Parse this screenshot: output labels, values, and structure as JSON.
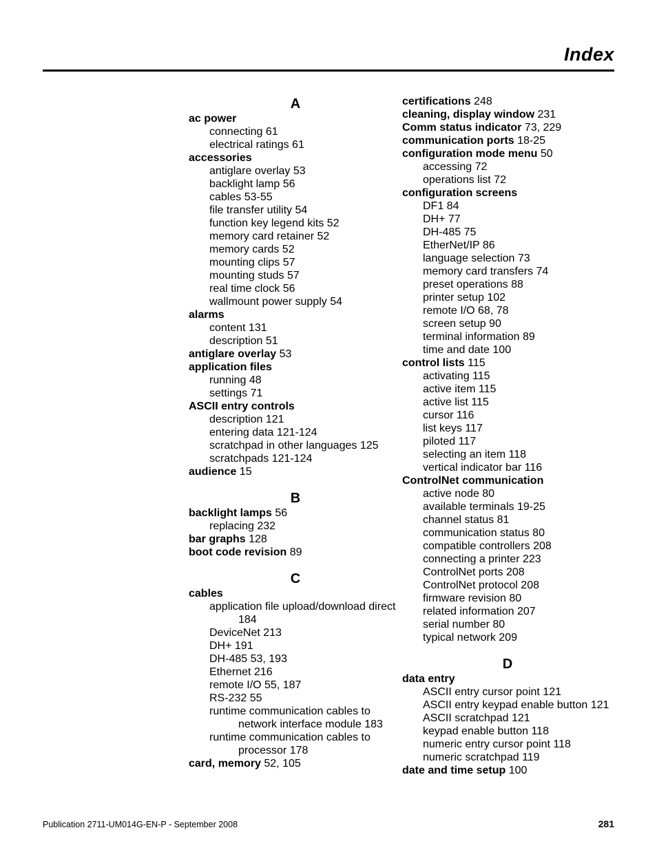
{
  "header": {
    "title": "Index"
  },
  "footer": {
    "pub": "Publication 2711-UM014G-EN-P - September 2008",
    "page": "281"
  },
  "col1": {
    "A": {
      "letter": "A",
      "ac_power": {
        "term": "ac power",
        "subs": [
          "connecting 61",
          "electrical ratings 61"
        ]
      },
      "accessories": {
        "term": "accessories",
        "subs": [
          "antiglare overlay 53",
          "backlight lamp 56",
          "cables 53-55",
          "file transfer utility 54",
          "function key legend kits 52",
          "memory card retainer 52",
          "memory cards 52",
          "mounting clips 57",
          "mounting studs 57",
          "real time clock 56",
          "wallmount power supply 54"
        ]
      },
      "alarms": {
        "term": "alarms",
        "subs": [
          "content 131",
          "description 51"
        ]
      },
      "antiglare_overlay": {
        "term": "antiglare overlay",
        "page": " 53"
      },
      "application_files": {
        "term": "application files",
        "subs": [
          "running 48",
          "settings 71"
        ]
      },
      "ascii_entry": {
        "term": "ASCII entry controls",
        "subs": [
          "description 121",
          "entering data 121-124",
          "scratchpad in other languages 125",
          "scratchpads 121-124"
        ]
      },
      "audience": {
        "term": "audience",
        "page": " 15"
      }
    },
    "B": {
      "letter": "B",
      "backlight_lamps": {
        "term": "backlight lamps",
        "page": " 56",
        "subs": [
          "replacing 232"
        ]
      },
      "bar_graphs": {
        "term": "bar graphs",
        "page": " 128"
      },
      "boot_code": {
        "term": "boot code revision",
        "page": " 89"
      }
    },
    "C": {
      "letter": "C",
      "cables": {
        "term": "cables",
        "subs": [
          {
            "text": "application file upload/download direct",
            "cont": "184"
          },
          {
            "text": "DeviceNet 213"
          },
          {
            "text": "DH+ 191"
          },
          {
            "text": "DH-485 53, 193"
          },
          {
            "text": "Ethernet 216"
          },
          {
            "text": "remote I/O 55, 187"
          },
          {
            "text": "RS-232 55"
          },
          {
            "text": "runtime communication cables to",
            "cont": "network interface module 183"
          },
          {
            "text": "runtime communication cables to",
            "cont": "processor 178"
          }
        ]
      },
      "card_memory": {
        "term": "card, memory",
        "page": " 52, 105"
      }
    }
  },
  "col2": {
    "C_cont": {
      "certifications": {
        "term": "certifications",
        "page": " 248"
      },
      "cleaning": {
        "term": "cleaning, display window",
        "page": " 231"
      },
      "comm_status": {
        "term": "Comm status indicator",
        "page": " 73, 229"
      },
      "comm_ports": {
        "term": "communication ports",
        "page": " 18-25"
      },
      "config_mode_menu": {
        "term": "configuration mode menu",
        "page": " 50",
        "subs": [
          "accessing 72",
          "operations list 72"
        ]
      },
      "config_screens": {
        "term": "configuration screens",
        "subs": [
          "DF1 84",
          "DH+ 77",
          "DH-485 75",
          "EtherNet/IP 86",
          "language selection 73",
          "memory card transfers 74",
          "preset operations 88",
          "printer setup 102",
          "remote I/O 68, 78",
          "screen setup 90",
          "terminal information 89",
          "time and date 100"
        ]
      },
      "control_lists": {
        "term": "control lists",
        "page": " 115",
        "subs": [
          "activating 115",
          "active item 115",
          "active list 115",
          "cursor 116",
          "list keys 117",
          "piloted 117",
          "selecting an item 118",
          "vertical indicator bar 116"
        ]
      },
      "controlnet": {
        "term": "ControlNet communication",
        "subs": [
          "active node 80",
          "available terminals 19-25",
          "channel status 81",
          "communication status 80",
          "compatible controllers 208",
          "connecting a printer 223",
          "ControlNet ports 208",
          "ControlNet protocol 208",
          "firmware revision 80",
          "related information 207",
          "serial number 80",
          "typical network 209"
        ]
      }
    },
    "D": {
      "letter": "D",
      "data_entry": {
        "term": "data entry",
        "subs": [
          "ASCII entry cursor point 121",
          "ASCII entry keypad enable button 121",
          "ASCII scratchpad 121",
          "keypad enable button 118",
          "numeric entry cursor point 118",
          "numeric scratchpad 119"
        ]
      },
      "date_time": {
        "term": "date and time setup",
        "page": " 100"
      }
    }
  }
}
